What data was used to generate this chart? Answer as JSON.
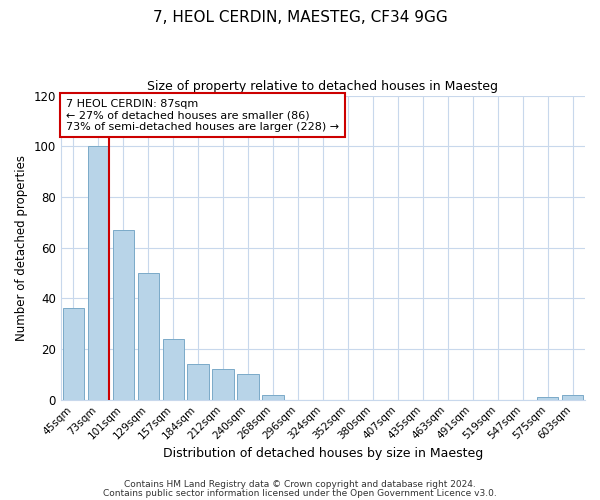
{
  "title": "7, HEOL CERDIN, MAESTEG, CF34 9GG",
  "subtitle": "Size of property relative to detached houses in Maesteg",
  "xlabel": "Distribution of detached houses by size in Maesteg",
  "ylabel": "Number of detached properties",
  "bar_labels": [
    "45sqm",
    "73sqm",
    "101sqm",
    "129sqm",
    "157sqm",
    "184sqm",
    "212sqm",
    "240sqm",
    "268sqm",
    "296sqm",
    "324sqm",
    "352sqm",
    "380sqm",
    "407sqm",
    "435sqm",
    "463sqm",
    "491sqm",
    "519sqm",
    "547sqm",
    "575sqm",
    "603sqm"
  ],
  "bar_values": [
    36,
    100,
    67,
    50,
    24,
    14,
    12,
    10,
    2,
    0,
    0,
    0,
    0,
    0,
    0,
    0,
    0,
    0,
    0,
    1,
    2
  ],
  "bar_color": "#b8d4e8",
  "bar_edge_color": "#7aaac8",
  "marker_line_color": "#cc0000",
  "annotation_title": "7 HEOL CERDIN: 87sqm",
  "annotation_line1": "← 27% of detached houses are smaller (86)",
  "annotation_line2": "73% of semi-detached houses are larger (228) →",
  "annotation_box_color": "#ffffff",
  "annotation_box_edge": "#cc0000",
  "ylim": [
    0,
    120
  ],
  "yticks": [
    0,
    20,
    40,
    60,
    80,
    100,
    120
  ],
  "footer_line1": "Contains HM Land Registry data © Crown copyright and database right 2024.",
  "footer_line2": "Contains public sector information licensed under the Open Government Licence v3.0.",
  "bg_color": "#ffffff",
  "plot_bg_color": "#ffffff",
  "grid_color": "#c8d8ec"
}
